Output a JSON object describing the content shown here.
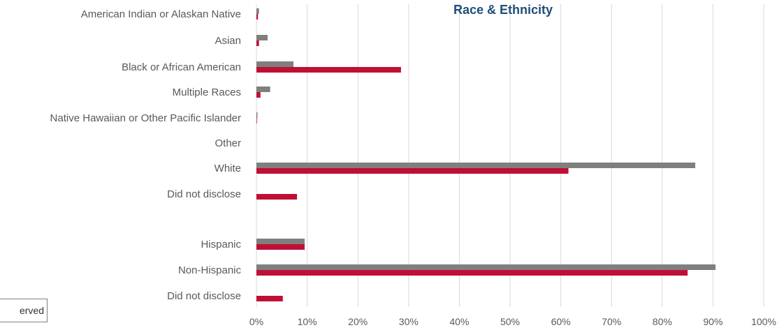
{
  "chart_data": {
    "type": "bar",
    "orientation": "horizontal",
    "title": "Race & Ethnicity",
    "categories": [
      "American Indian or Alaskan Native",
      "Asian",
      "Black or African American",
      "Multiple Races",
      "Native Hawaiian or Other Pacific Islander",
      "Other",
      "White",
      "Did not disclose",
      "Hispanic",
      "Non-Hispanic",
      "Did not disclose"
    ],
    "series": [
      {
        "color": "#7f7f7f",
        "values": [
          0.5,
          2.2,
          7.3,
          2.7,
          0.2,
          0,
          86.5,
          null,
          9.5,
          90.5,
          null
        ]
      },
      {
        "color": "#c00f35",
        "values": [
          0.3,
          0.5,
          28.5,
          0.8,
          0.1,
          0,
          61.5,
          8.0,
          9.5,
          85.0,
          5.2
        ]
      }
    ],
    "xlim": [
      0,
      100
    ],
    "x_ticks": [
      "0%",
      "10%",
      "20%",
      "30%",
      "40%",
      "50%",
      "60%",
      "70%",
      "80%",
      "90%",
      "100%"
    ],
    "grid": true,
    "legend_fragment": "erved"
  }
}
